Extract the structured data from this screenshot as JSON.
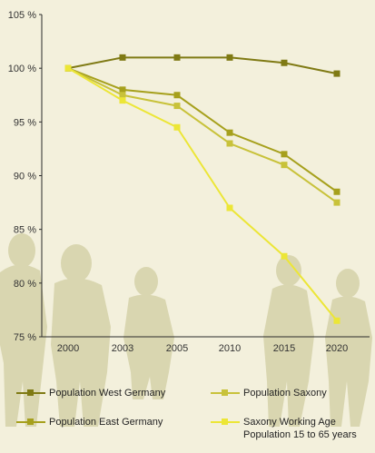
{
  "chart_data": {
    "type": "line",
    "categories": [
      "2000",
      "2003",
      "2005",
      "2010",
      "2015",
      "2020"
    ],
    "y_ticks": [
      "105 %",
      "100 %",
      "95 %",
      "90 %",
      "85 %",
      "80 %",
      "75 %"
    ],
    "ylim": [
      75,
      105
    ],
    "grid": false,
    "legend_position": "bottom",
    "series": [
      {
        "name": "Population West Germany",
        "color": "#7f7a14",
        "values": [
          100,
          101,
          101,
          101,
          100.5,
          99.5
        ]
      },
      {
        "name": "Population East Germany",
        "color": "#a6a01c",
        "values": [
          100,
          98,
          97.5,
          94,
          92,
          88.5
        ]
      },
      {
        "name": "Population Saxony",
        "color": "#c8c23a",
        "values": [
          100,
          97.5,
          96.5,
          93,
          91,
          87.5
        ]
      },
      {
        "name": "Saxony Working Age\nPopulation 15 to 65 years",
        "color": "#ece636",
        "values": [
          100,
          97,
          94.5,
          87,
          82.5,
          76.5
        ]
      }
    ]
  },
  "legend": {
    "west": "Population West Germany",
    "east": "Population East Germany",
    "saxony": "Population Saxony",
    "working_line1": "Saxony Working Age",
    "working_line2": "Population 15 to 65 years"
  }
}
